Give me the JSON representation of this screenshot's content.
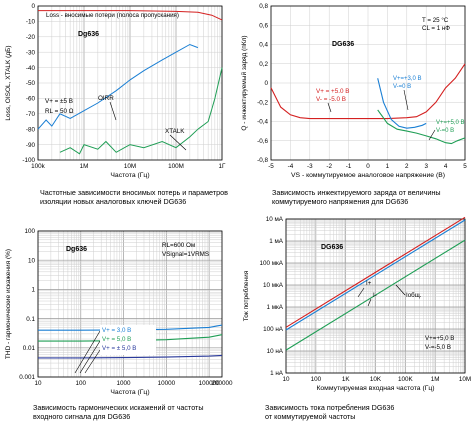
{
  "colors": {
    "red": "#d42020",
    "blue": "#1a7fd4",
    "green": "#1f9e55",
    "navy": "#2a3a9c",
    "grid": "#cfcfcf",
    "axis": "#000000"
  },
  "chart_data": [
    {
      "type": "line",
      "title": "Dg636",
      "xlabel": "Частота (Гц)",
      "ylabel": "Loss, OISOL, XTALK (дБ)",
      "x_scale": "log",
      "xlim": [
        100000,
        1000000000
      ],
      "ylim": [
        -100,
        0
      ],
      "xticks": [
        "100k",
        "1M",
        "10M",
        "100M",
        "1Г"
      ],
      "yticks": [
        "0",
        "-10",
        "-20",
        "-30",
        "-40",
        "-50",
        "-60",
        "-70",
        "-80",
        "-90",
        "-100"
      ],
      "annotations": [
        "Loss - вносимые потери (полоса пропускания)",
        "V+ = ±5 В",
        "RL = 50 Ω",
        "OIRR",
        "XTALK"
      ],
      "series": [
        {
          "name": "Loss",
          "color": "red",
          "x": [
            100000,
            1000000,
            10000000,
            100000000,
            300000000,
            600000000,
            1000000000
          ],
          "y": [
            -3,
            -3,
            -3,
            -3.5,
            -4,
            -6,
            -9
          ]
        },
        {
          "name": "OIRR",
          "color": "blue",
          "x": [
            100000,
            150000,
            200000,
            300000,
            500000,
            1000000,
            2000000,
            5000000,
            10000000,
            20000000,
            50000000,
            100000000,
            200000000,
            300000000
          ],
          "y": [
            -80,
            -74,
            -78,
            -70,
            -73,
            -68,
            -63,
            -55,
            -48,
            -42,
            -35,
            -30,
            -25,
            -27
          ]
        },
        {
          "name": "XTALK",
          "color": "green",
          "x": [
            300000,
            500000,
            800000,
            1000000,
            2000000,
            3000000,
            5000000,
            10000000,
            20000000,
            50000000,
            100000000,
            200000000,
            300000000,
            500000000,
            700000000,
            1000000000
          ],
          "y": [
            -95,
            -92,
            -96,
            -90,
            -93,
            -88,
            -95,
            -90,
            -92,
            -88,
            -92,
            -85,
            -80,
            -75,
            -60,
            -40
          ]
        }
      ],
      "caption": [
        "Частотные зависимости вносимых потерь и параметров",
        "изоляции новых аналоговых ключей DG636"
      ]
    },
    {
      "type": "line",
      "title": "DG636",
      "xlabel": "VS - коммутируемое аналоговое напряжение (В)",
      "ylabel": "Q - инжектируемый заряд (пКл)",
      "xlim": [
        -5,
        5
      ],
      "ylim": [
        -0.8,
        0.8
      ],
      "xticks": [
        "-5",
        "-4",
        "-3",
        "-2",
        "-1",
        "0",
        "1",
        "2",
        "3",
        "4",
        "5"
      ],
      "yticks": [
        "0,8",
        "0,6",
        "0,4",
        "0,2",
        "0",
        "-0,2",
        "-0,4",
        "-0,6",
        "-0,8"
      ],
      "annotations": [
        "T = 25 °C",
        "CL = 1 нФ",
        "V+ = +5.0 В",
        "V- = -5.0 В",
        "V+=+3,0 В",
        "V-=0 В",
        "V+=+5,0 В",
        "V-=0 В"
      ],
      "series": [
        {
          "name": "±5.0 В",
          "color": "red",
          "x": [
            -5,
            -4.5,
            -4,
            -3.5,
            -3,
            -2,
            -1,
            0,
            1,
            2,
            2.5,
            3,
            3.5,
            4,
            4.5,
            5
          ],
          "y": [
            -0.05,
            -0.25,
            -0.33,
            -0.36,
            -0.37,
            -0.37,
            -0.37,
            -0.37,
            -0.37,
            -0.36,
            -0.35,
            -0.3,
            -0.2,
            -0.05,
            0.05,
            0.2
          ]
        },
        {
          "name": "+3,0 В",
          "color": "blue",
          "x": [
            0.5,
            0.8,
            1.2,
            1.6,
            2,
            2.4,
            2.8,
            3
          ],
          "y": [
            0.05,
            -0.2,
            -0.38,
            -0.45,
            -0.47,
            -0.46,
            -0.44,
            -0.42
          ]
        },
        {
          "name": "+5,0 В",
          "color": "green",
          "x": [
            0.5,
            1,
            1.5,
            2,
            2.5,
            3,
            3.5,
            4,
            4.3,
            4.6,
            5
          ],
          "y": [
            -0.28,
            -0.42,
            -0.48,
            -0.5,
            -0.52,
            -0.55,
            -0.58,
            -0.62,
            -0.63,
            -0.6,
            -0.57
          ]
        }
      ],
      "caption": [
        "Зависимость инжектируемого заряда от величины",
        "коммутируемого напряжения для DG636"
      ]
    },
    {
      "type": "line",
      "title": "Dg636",
      "xlabel": "Частота (Гц)",
      "ylabel": "THD - гармонические искажения (%)",
      "x_scale": "log",
      "y_scale": "log",
      "xlim": [
        10,
        200000
      ],
      "ylim": [
        0.001,
        100
      ],
      "xticks": [
        "10",
        "100",
        "1000",
        "10000",
        "100000",
        "200000"
      ],
      "yticks": [
        "100",
        "10",
        "1",
        "0.1",
        "0.01",
        "0.001"
      ],
      "annotations": [
        "RL=600 Ом",
        "VSignal=1VRMS"
      ],
      "series": [
        {
          "name": "V+ = 3,0 В",
          "color": "blue",
          "x": [
            10,
            100,
            1000,
            10000,
            100000,
            200000
          ],
          "y": [
            0.04,
            0.04,
            0.041,
            0.043,
            0.05,
            0.06
          ]
        },
        {
          "name": "V+ = 5,0 В",
          "color": "green",
          "x": [
            10,
            100,
            1000,
            10000,
            100000,
            200000
          ],
          "y": [
            0.017,
            0.017,
            0.0175,
            0.019,
            0.023,
            0.028
          ]
        },
        {
          "name": "V+ = ± 5,0 В",
          "color": "navy",
          "x": [
            10,
            100,
            1000,
            10000,
            100000,
            200000
          ],
          "y": [
            0.0045,
            0.0045,
            0.0046,
            0.0048,
            0.0052,
            0.0055
          ]
        }
      ],
      "caption": [
        "Зависимость гармонических искажений от частоты",
        "входного сигнала для DG636"
      ]
    },
    {
      "type": "line",
      "title": "DG636",
      "xlabel": "Коммутируемая входная частота (Гц)",
      "ylabel": "Ток потребления",
      "x_scale": "log",
      "y_scale": "log",
      "xlim": [
        10,
        10000000
      ],
      "ylim": [
        1e-09,
        0.01
      ],
      "xticks": [
        "10",
        "100",
        "1K",
        "10K",
        "100K",
        "1M",
        "10M"
      ],
      "yticks": [
        "10 мА",
        "1 мА",
        "100 мкА",
        "10 мкА",
        "1 мкА",
        "100 нА",
        "10 нА",
        "1 нА"
      ],
      "annotations": [
        "I+",
        "I-",
        "Iобщ.",
        "V+=+5,0 В",
        "V-=-5,0 В"
      ],
      "series": [
        {
          "name": "I+",
          "color": "red",
          "x": [
            10,
            10000000
          ],
          "y": [
            1.2e-07,
            0.012
          ]
        },
        {
          "name": "I-",
          "color": "blue",
          "x": [
            10,
            10000000
          ],
          "y": [
            9e-08,
            0.009
          ]
        },
        {
          "name": "Iобщ.",
          "color": "green",
          "x": [
            10,
            10000000
          ],
          "y": [
            1.1e-08,
            0.0011
          ]
        }
      ],
      "caption": [
        "Зависимость тока потребления DG636",
        "от коммутируемой частоты"
      ]
    }
  ]
}
